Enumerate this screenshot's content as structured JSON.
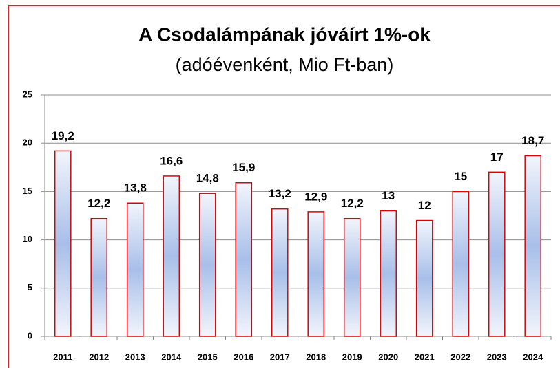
{
  "chart_data": {
    "type": "bar",
    "title": "A Csodalámpának jóváírt 1%-ok",
    "subtitle": "(adóévenként, Mio Ft-ban)",
    "categories": [
      "2011",
      "2012",
      "2013",
      "2014",
      "2015",
      "2016",
      "2017",
      "2018",
      "2019",
      "2020",
      "2021",
      "2022",
      "2023",
      "2024"
    ],
    "values": [
      19.2,
      12.2,
      13.8,
      16.6,
      14.8,
      15.9,
      13.2,
      12.9,
      12.2,
      13,
      12,
      15,
      17,
      18.7
    ],
    "value_labels": [
      "19,2",
      "12,2",
      "13,8",
      "16,6",
      "14,8",
      "15,9",
      "13,2",
      "12,9",
      "12,2",
      "13",
      "12",
      "15",
      "17",
      "18,7"
    ],
    "color": "#e00000",
    "ylim": [
      0,
      25
    ],
    "yticks": [
      0,
      5,
      10,
      15,
      20,
      25
    ],
    "grid": true
  }
}
